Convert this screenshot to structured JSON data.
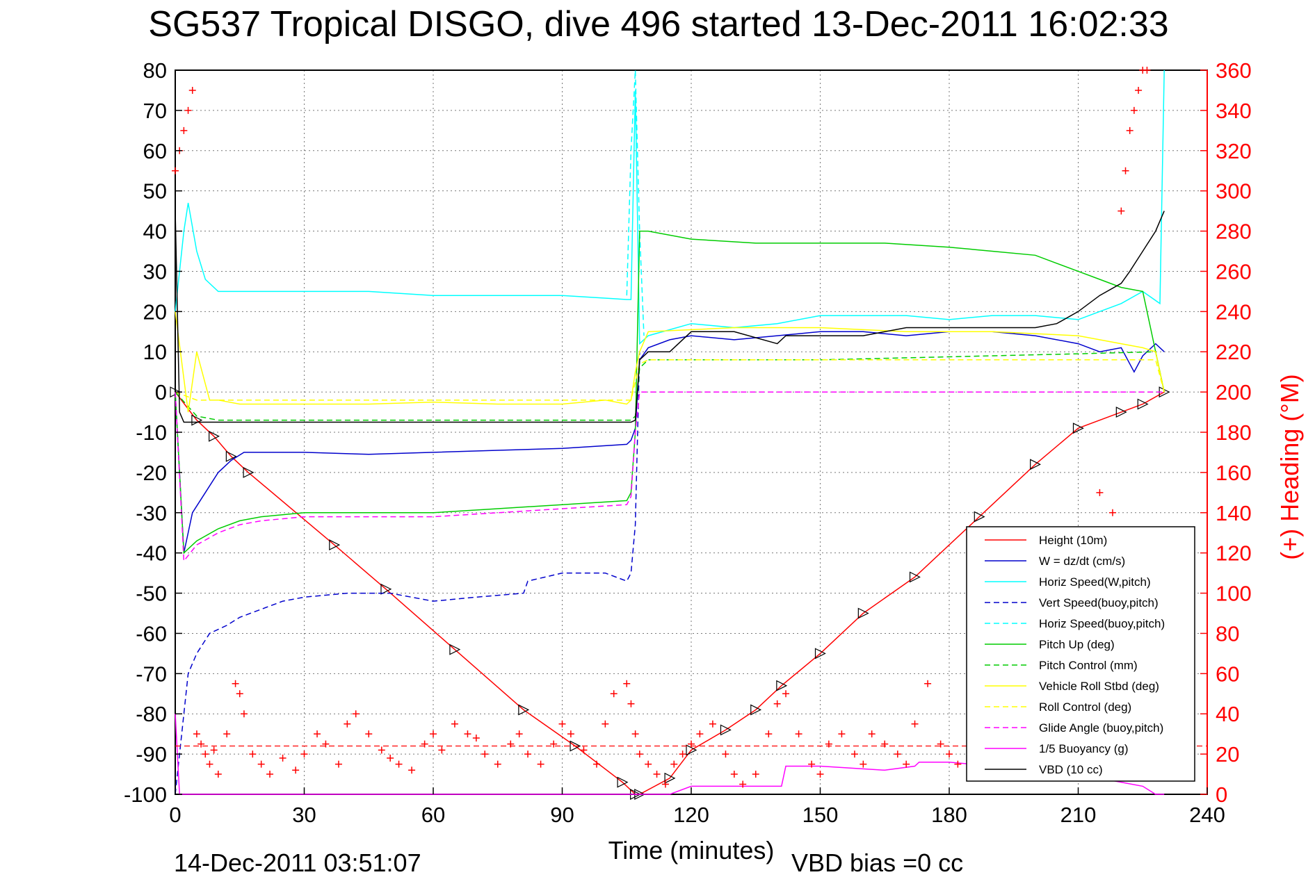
{
  "title": "SG537 Tropical DISGO, dive 496 started 13-Dec-2011 16:02:33",
  "end_time": "14-Dec-2011 03:51:07",
  "vbd_bias": "VBD bias =0 cc",
  "colors": {
    "height": "#ff0000",
    "w": "#0000cc",
    "hspeed": "#00ffff",
    "pitch": "#00cc00",
    "roll": "#ffff00",
    "glide": "#ff00ff",
    "vbd": "#000000",
    "heading": "#ff0000"
  },
  "chart_data": {
    "type": "line",
    "title": "SG537 Tropical DISGO, dive 496 started 13-Dec-2011 16:02:33",
    "xlabel": "Time (minutes)",
    "ylabel_right": "(+) Heading (°M)",
    "xlim": [
      0,
      240
    ],
    "ylim": [
      -100,
      80
    ],
    "ylim_right": [
      0,
      360
    ],
    "x_ticks": [
      "0",
      "30",
      "60",
      "90",
      "120",
      "150",
      "180",
      "210",
      "240"
    ],
    "y_ticks": [
      "80",
      "70",
      "60",
      "50",
      "40",
      "30",
      "20",
      "10",
      "0",
      "-10",
      "-20",
      "-30",
      "-40",
      "-50",
      "-60",
      "-70",
      "-80",
      "-90",
      "-100"
    ],
    "y_ticks_right": [
      "360",
      "340",
      "320",
      "300",
      "280",
      "260",
      "240",
      "220",
      "200",
      "180",
      "160",
      "140",
      "120",
      "100",
      "80",
      "60",
      "40",
      "20",
      "0"
    ],
    "grid": true,
    "legend_position": "bottom-right",
    "legend": [
      "Height (10m)",
      "W = dz/dt (cm/s)",
      "Horiz Speed(W,pitch)",
      "Vert Speed(buoy,pitch)",
      "Horiz Speed(buoy,pitch)",
      "Pitch Up (deg)",
      "Pitch Control (mm)",
      "Vehicle Roll Stbd (deg)",
      "Roll Control (deg)",
      "Glide Angle (buoy,pitch)",
      "1/5 Buoyancy (g)",
      "VBD (10 cc)"
    ],
    "series": [
      {
        "name": "Height (10m)",
        "x": [
          0,
          5,
          9,
          13,
          17,
          37,
          49,
          65,
          81,
          93,
          104,
          107,
          108,
          115,
          120,
          128,
          135,
          141,
          150,
          160,
          172,
          187,
          200,
          210,
          220,
          225,
          230
        ],
        "y": [
          0,
          -7,
          -11,
          -16,
          -20,
          -38,
          -49,
          -64,
          -79,
          -88,
          -97,
          -100,
          -100,
          -96,
          -89,
          -84,
          -79,
          -73,
          -65,
          -55,
          -46,
          -31,
          -18,
          -9,
          -5,
          -3,
          0
        ]
      },
      {
        "name": "W = dz/dt (cm/s)",
        "x": [
          0,
          2,
          4,
          7,
          10,
          13,
          16,
          20,
          30,
          45,
          60,
          75,
          90,
          105,
          106,
          107,
          108,
          110,
          115,
          120,
          130,
          140,
          150,
          160,
          170,
          180,
          190,
          200,
          210,
          215,
          220,
          223,
          225,
          228,
          230
        ],
        "y": [
          0,
          -40,
          -30,
          -25,
          -20,
          -17,
          -15,
          -15,
          -15,
          -15.5,
          -15,
          -14.5,
          -14,
          -13,
          -12,
          -9,
          8,
          11,
          13,
          14,
          13,
          14,
          15,
          15,
          14,
          15,
          15,
          14,
          12,
          10,
          11,
          5,
          9,
          12,
          10
        ]
      },
      {
        "name": "Horiz Speed(W,pitch)",
        "x": [
          0,
          2,
          3,
          5,
          7,
          10,
          15,
          20,
          30,
          45,
          60,
          75,
          90,
          105,
          106,
          107,
          108,
          110,
          120,
          130,
          140,
          150,
          160,
          170,
          180,
          190,
          200,
          210,
          215,
          220,
          225,
          229,
          230
        ],
        "y": [
          20,
          40,
          47,
          35,
          28,
          25,
          25,
          25,
          25,
          25,
          24,
          24,
          24,
          23,
          23,
          75,
          12,
          14,
          17,
          16,
          17,
          19,
          19,
          19,
          18,
          19,
          19,
          18,
          20,
          22,
          25,
          22,
          80
        ]
      },
      {
        "name": "Vert Speed(buoy,pitch)",
        "x": [
          0,
          3,
          5,
          8,
          12,
          15,
          20,
          25,
          30,
          40,
          50,
          60,
          70,
          81,
          82,
          90,
          100,
          105,
          106,
          107,
          108
        ],
        "y": [
          -100,
          -70,
          -65,
          -60,
          -58,
          -56,
          -54,
          -52,
          -51,
          -50,
          -50,
          -52,
          -51,
          -50,
          -47,
          -45,
          -45,
          -47,
          -45,
          -33,
          10
        ]
      },
      {
        "name": "Horiz Speed(buoy,pitch)",
        "x": [
          105,
          106,
          107,
          108,
          109
        ],
        "y": [
          24,
          60,
          80,
          40,
          14
        ]
      },
      {
        "name": "Pitch Up (deg)",
        "x": [
          0,
          2,
          5,
          10,
          15,
          20,
          30,
          45,
          60,
          75,
          90,
          105,
          106,
          107,
          108,
          110,
          120,
          135,
          150,
          165,
          180,
          190,
          200,
          205,
          210,
          215,
          220,
          225,
          230
        ],
        "y": [
          0,
          -40,
          -37,
          -34,
          -32,
          -31,
          -30,
          -30,
          -30,
          -29,
          -28,
          -27,
          -25,
          -10,
          40,
          40,
          38,
          37,
          37,
          37,
          36,
          35,
          34,
          32,
          30,
          28,
          26,
          25,
          0
        ]
      },
      {
        "name": "Pitch Control (mm)",
        "x": [
          0,
          5,
          10,
          20,
          40,
          60,
          80,
          100,
          106,
          107,
          108,
          110,
          130,
          150,
          170,
          190,
          210,
          228,
          230
        ],
        "y": [
          0,
          -6,
          -7,
          -7,
          -7,
          -7,
          -7,
          -7,
          -7,
          -6,
          6,
          8,
          8,
          8,
          8.5,
          9,
          9.5,
          10,
          0
        ]
      },
      {
        "name": "Vehicle Roll Stbd (deg)",
        "x": [
          0,
          3,
          5,
          8,
          10,
          15,
          20,
          30,
          45,
          60,
          75,
          90,
          100,
          105,
          106,
          107,
          108,
          110,
          130,
          150,
          170,
          190,
          210,
          220,
          225,
          228,
          230
        ],
        "y": [
          20,
          -5,
          10,
          -2,
          -2,
          -3,
          -3,
          -3,
          -3,
          -2.5,
          -3,
          -3,
          -2,
          -3,
          -2,
          5,
          10,
          15,
          16,
          16,
          15,
          15,
          14,
          12,
          11,
          10,
          0
        ]
      },
      {
        "name": "Roll Control (deg)",
        "x": [
          0,
          5,
          10,
          30,
          60,
          90,
          105,
          106,
          108,
          110,
          140,
          170,
          200,
          228,
          230
        ],
        "y": [
          0,
          -2,
          -2,
          -2,
          -2,
          -2,
          -2,
          -2,
          7,
          8,
          8,
          8,
          8,
          8,
          0
        ]
      },
      {
        "name": "Glide Angle (buoy,pitch)",
        "x": [
          0,
          2,
          5,
          10,
          15,
          20,
          30,
          45,
          60,
          75,
          90,
          105,
          106,
          107,
          108,
          120,
          150,
          180,
          210,
          230
        ],
        "y": [
          0,
          -42,
          -38,
          -35,
          -33,
          -32,
          -31,
          -31,
          -31,
          -30,
          -29,
          -28,
          -26,
          -10,
          0,
          0,
          0,
          0,
          0,
          0
        ]
      },
      {
        "name": "1/5 Buoyancy (g)",
        "x": [
          0,
          1,
          2,
          108,
          115,
          120,
          130,
          141,
          142,
          150,
          165,
          172,
          173,
          180,
          190,
          200,
          210,
          220,
          225,
          228,
          230
        ],
        "y": [
          -80,
          -100,
          -100,
          -100,
          -100,
          -98,
          -98,
          -98,
          -93,
          -93,
          -94,
          -93,
          -92,
          -92,
          -93,
          -94,
          -95,
          -97,
          -98,
          -100,
          -100
        ]
      },
      {
        "name": "VBD (10 cc)",
        "x": [
          0,
          1,
          2,
          50,
          100,
          106,
          107,
          108,
          110,
          115,
          120,
          130,
          140,
          142,
          150,
          160,
          170,
          180,
          190,
          200,
          205,
          210,
          215,
          220,
          222,
          225,
          228,
          230
        ],
        "y": [
          45,
          -5,
          -7.5,
          -7.5,
          -7.5,
          -7.5,
          -7,
          8,
          10,
          10,
          15,
          15,
          12,
          14,
          14,
          14,
          16,
          16,
          16,
          16,
          17,
          20,
          24,
          27,
          30,
          35,
          40,
          45
        ]
      },
      {
        "name": "(+) Heading (°M)",
        "axis": "right",
        "marker": "+",
        "x": [
          0,
          1,
          2,
          3,
          4,
          5,
          6,
          7,
          8,
          9,
          10,
          12,
          14,
          15,
          16,
          18,
          20,
          22,
          25,
          28,
          30,
          33,
          35,
          38,
          40,
          42,
          45,
          48,
          50,
          52,
          55,
          58,
          60,
          62,
          65,
          68,
          70,
          72,
          75,
          78,
          80,
          82,
          85,
          88,
          90,
          92,
          95,
          98,
          100,
          102,
          105,
          106,
          107,
          108,
          110,
          112,
          114,
          116,
          118,
          120,
          122,
          125,
          128,
          130,
          132,
          135,
          138,
          140,
          142,
          145,
          148,
          150,
          152,
          155,
          158,
          160,
          162,
          165,
          168,
          170,
          172,
          175,
          178,
          180,
          182,
          185,
          188,
          190,
          195,
          200,
          205,
          210,
          212,
          215,
          216,
          218,
          220,
          221,
          222,
          223,
          224,
          225,
          226
        ],
        "y": [
          310,
          320,
          330,
          340,
          350,
          30,
          25,
          20,
          15,
          22,
          10,
          30,
          55,
          50,
          40,
          20,
          15,
          10,
          18,
          12,
          20,
          30,
          25,
          15,
          35,
          40,
          30,
          22,
          18,
          15,
          12,
          25,
          30,
          22,
          35,
          30,
          28,
          20,
          15,
          25,
          30,
          20,
          15,
          25,
          35,
          30,
          22,
          15,
          35,
          50,
          55,
          45,
          30,
          20,
          15,
          10,
          5,
          15,
          20,
          25,
          30,
          35,
          20,
          10,
          5,
          10,
          30,
          45,
          50,
          30,
          15,
          10,
          25,
          30,
          20,
          15,
          30,
          25,
          20,
          15,
          35,
          55,
          25,
          20,
          15,
          10,
          15,
          20,
          25,
          20,
          15,
          20,
          30,
          150,
          130,
          140,
          290,
          310,
          330,
          340,
          350,
          360,
          360
        ]
      }
    ]
  }
}
